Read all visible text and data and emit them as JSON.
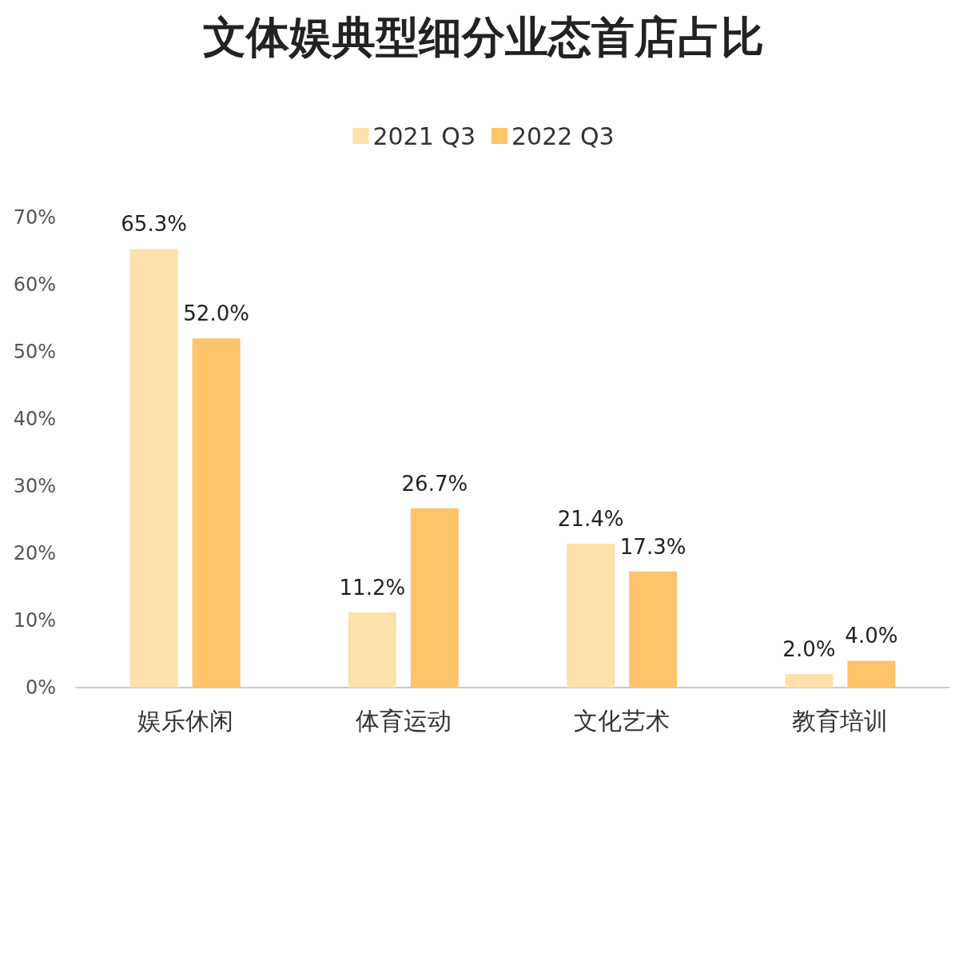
{
  "chart_data": {
    "type": "bar",
    "title": "文体娱典型细分业态首店占比",
    "categories": [
      "娱乐休闲",
      "体育运动",
      "文化艺术",
      "教育培训"
    ],
    "series": [
      {
        "name": "2021 Q3",
        "color": "#fde0aa",
        "values": [
          65.3,
          11.2,
          21.4,
          2.0
        ],
        "value_labels": [
          "65.3%",
          "11.2%",
          "21.4%",
          "2.0%"
        ]
      },
      {
        "name": "2022 Q3",
        "color": "#fdc46a",
        "values": [
          52.0,
          26.7,
          17.3,
          4.0
        ],
        "value_labels": [
          "52.0%",
          "26.7%",
          "17.3%",
          "4.0%"
        ]
      }
    ],
    "ylim": [
      0,
      70
    ],
    "yticks": [
      {
        "value": 0,
        "label": "0%"
      },
      {
        "value": 10,
        "label": "10%"
      },
      {
        "value": 20,
        "label": "20%"
      },
      {
        "value": 30,
        "label": "30%"
      },
      {
        "value": 40,
        "label": "40%"
      },
      {
        "value": 50,
        "label": "50%"
      },
      {
        "value": 60,
        "label": "60%"
      },
      {
        "value": 70,
        "label": "70%"
      }
    ],
    "grid": false,
    "legend": "top"
  }
}
